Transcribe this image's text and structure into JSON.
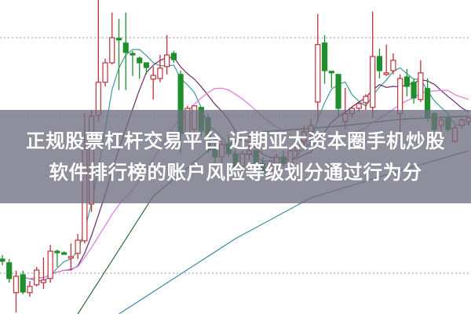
{
  "headline": {
    "line1": "正规股票杠杆交易平台 近期亚太资本圈手机炒股",
    "line2": "软件排行榜的账户风险等级划分通过行为分"
  },
  "colors": {
    "up": "#c0303a",
    "down": "#1e8f2a",
    "ma5": "#3d9a9a",
    "ma10": "#6a2a6a",
    "ma20": "#e07ad8",
    "long_line_1": "#2f6a3a",
    "long_line_2": "#3a8aa0",
    "grid": "#9a9a9a",
    "band": "#6e6e80"
  },
  "chart_data": {
    "type": "candlestick",
    "title": "",
    "xlabel": "",
    "ylabel": "",
    "ylim": [
      0,
      100
    ],
    "grid": "dotted horizontal",
    "gridlines": [
      88,
      63,
      13
    ],
    "candles_ohlc": [
      [
        17.5,
        18.8,
        15.5,
        16.8
      ],
      [
        16.3,
        17.5,
        10,
        11.3
      ],
      [
        6.8,
        13.8,
        0.5,
        12
      ],
      [
        12.5,
        13.8,
        6.3,
        7
      ],
      [
        6.8,
        10.5,
        5.5,
        8.8
      ],
      [
        9.3,
        15,
        8.8,
        14
      ],
      [
        10,
        18,
        8,
        10.8
      ],
      [
        11.3,
        22,
        10,
        20
      ],
      [
        20,
        20.5,
        15,
        19.5
      ],
      [
        19.5,
        20,
        19,
        19
      ],
      [
        18,
        22.5,
        13.8,
        18.3
      ],
      [
        19.3,
        25.5,
        17.5,
        23.5
      ],
      [
        23.3,
        64,
        22.5,
        52.5
      ],
      [
        35,
        65,
        32.5,
        63
      ],
      [
        63.3,
        100,
        61.3,
        73.8
      ],
      [
        73.8,
        81.3,
        72.5,
        80
      ],
      [
        80,
        96,
        79.5,
        88
      ],
      [
        87.8,
        94,
        71.3,
        87.3
      ],
      [
        86.3,
        96,
        71.3,
        83.3
      ],
      [
        83,
        83.8,
        75.8,
        82.5
      ],
      [
        81.5,
        82,
        75,
        80
      ],
      [
        80,
        80,
        76.3,
        78.5
      ],
      [
        74.8,
        78.8,
        68.3,
        76
      ],
      [
        75,
        82.5,
        73.8,
        78.3
      ],
      [
        78.8,
        88.8,
        76.3,
        82.5
      ],
      [
        83,
        83.8,
        80,
        81
      ],
      [
        76.3,
        77.5,
        51.3,
        57.5
      ],
      [
        57.5,
        66.3,
        55,
        65.5
      ],
      [
        58.8,
        66.5,
        57,
        66.3
      ],
      [
        65.8,
        65.8,
        56.3,
        58.3
      ],
      [
        62.5,
        63.8,
        51.3,
        52.5
      ],
      [
        53,
        56,
        48,
        50
      ],
      [
        50,
        55,
        47,
        54
      ],
      [
        54,
        57,
        50,
        51
      ],
      [
        51,
        53,
        46,
        47
      ],
      [
        47,
        52,
        45,
        51
      ],
      [
        51,
        54,
        49,
        52
      ],
      [
        52,
        53,
        47,
        48
      ],
      [
        48,
        50,
        44,
        45
      ],
      [
        45,
        49,
        43,
        48
      ],
      [
        48,
        51,
        46,
        50
      ],
      [
        50,
        52,
        47,
        48
      ],
      [
        48,
        53,
        47,
        52
      ],
      [
        52,
        56,
        50,
        55
      ],
      [
        55,
        60,
        53,
        58
      ],
      [
        58,
        62,
        55,
        60
      ],
      [
        67.5,
        95.5,
        61.3,
        85.8
      ],
      [
        86.3,
        88.8,
        73.3,
        77.5
      ],
      [
        77.3,
        77.3,
        72,
        76.8
      ],
      [
        76.3,
        76.3,
        63,
        65.5
      ],
      [
        61.3,
        72,
        58.8,
        63.8
      ],
      [
        63.8,
        66,
        62.5,
        65.5
      ],
      [
        65.5,
        67.5,
        64.5,
        67
      ],
      [
        67.3,
        70,
        65,
        69.3
      ],
      [
        65.8,
        96.3,
        62.5,
        82
      ],
      [
        82,
        84.5,
        75,
        77.5
      ],
      [
        76.3,
        85.8,
        75.8,
        76.8
      ],
      [
        77.5,
        83,
        76.3,
        80.8
      ],
      [
        63.8,
        76.3,
        57.5,
        75
      ],
      [
        75.5,
        78,
        69.3,
        72.5
      ],
      [
        73.8,
        75,
        67,
        68.8
      ],
      [
        68.3,
        80.8,
        67.5,
        76.8
      ],
      [
        71.8,
        75,
        61.3,
        62.5
      ],
      [
        63.8,
        64.3,
        58,
        58.8
      ],
      [
        60,
        63,
        57.5,
        61.8
      ],
      [
        62.5,
        63,
        58,
        58.8
      ],
      [
        55,
        60,
        54.5,
        59.3
      ],
      [
        60,
        62.5,
        59,
        61.8
      ],
      [
        61.3,
        63,
        60,
        62.5
      ]
    ],
    "moving_averages": [
      5,
      10,
      20
    ],
    "long_lines": [
      {
        "points": [
          [
            11,
            0
          ],
          [
            22,
            37.5
          ],
          [
            30,
            52
          ],
          [
            38,
            58
          ],
          [
            50,
            60
          ],
          [
            58,
            62
          ],
          [
            68,
            63
          ]
        ]
      },
      {
        "points": [
          [
            17,
            0
          ],
          [
            34,
            24
          ],
          [
            45,
            37
          ],
          [
            57,
            45
          ],
          [
            68,
            52
          ]
        ]
      }
    ]
  }
}
